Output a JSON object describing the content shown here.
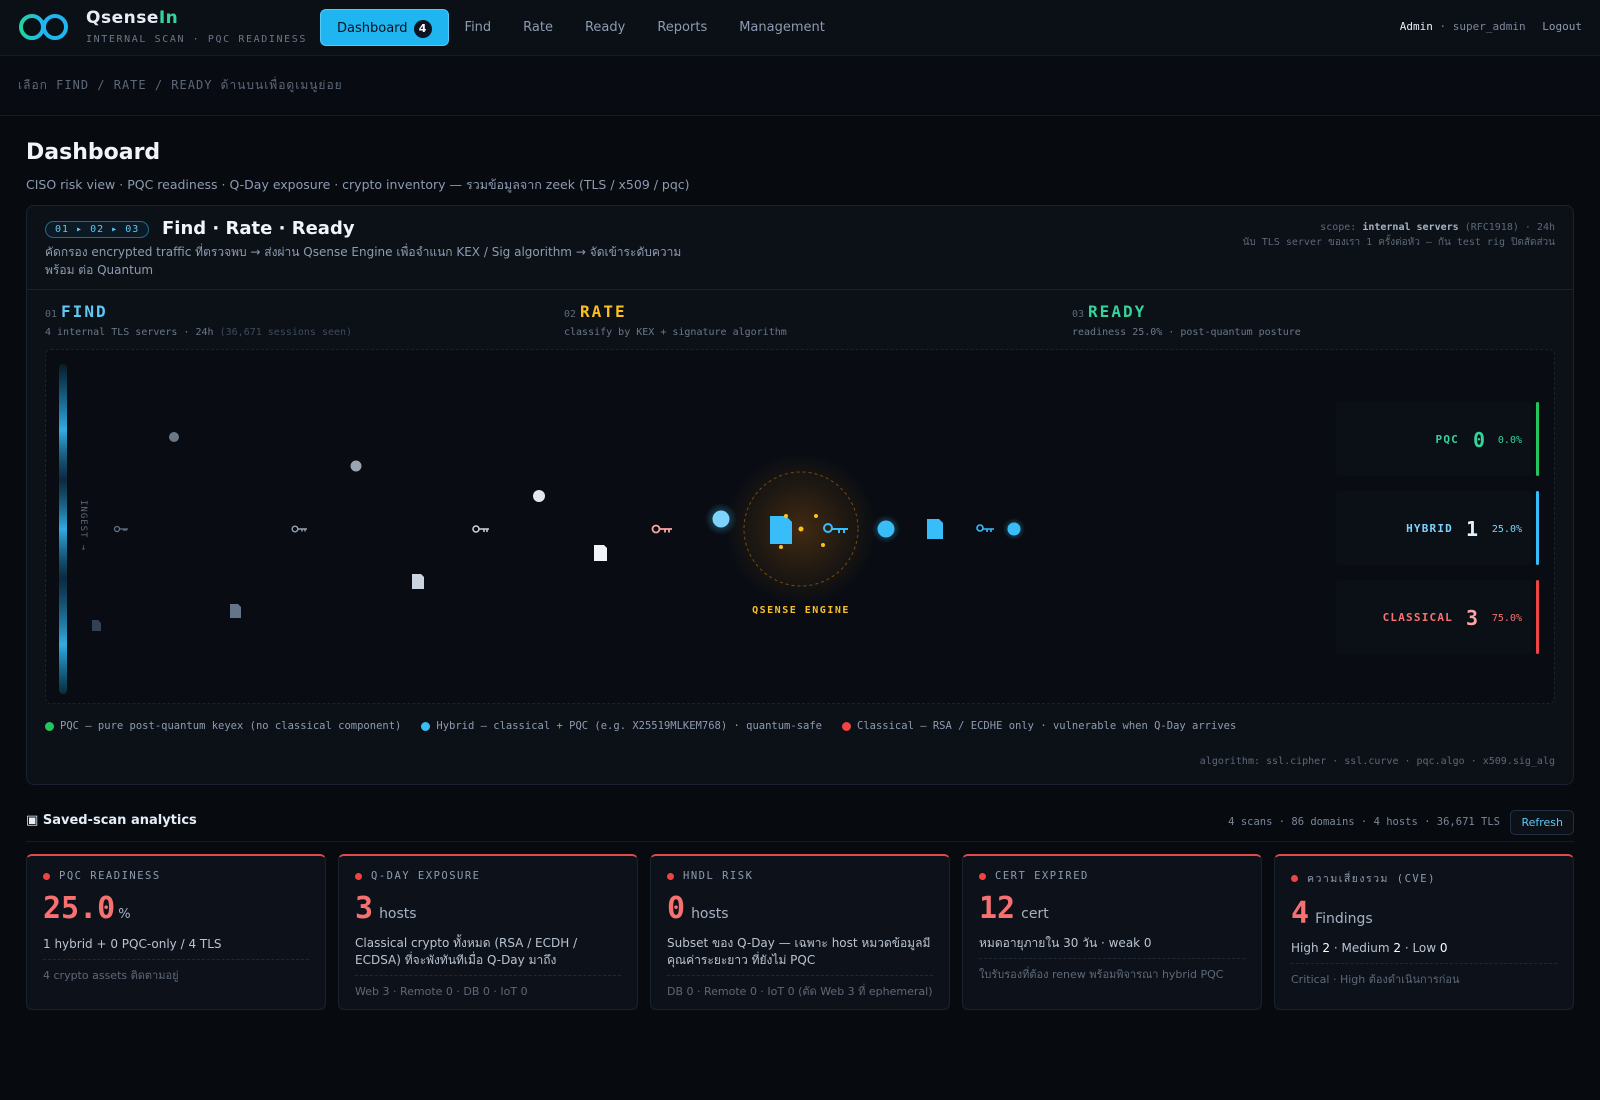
{
  "brand": {
    "name_prefix": "Qsense",
    "name_suffix": "In",
    "subtitle": "INTERNAL SCAN · PQC READINESS"
  },
  "nav": {
    "items": [
      {
        "label": "Dashboard",
        "badge": "4",
        "active": true
      },
      {
        "label": "Find"
      },
      {
        "label": "Rate"
      },
      {
        "label": "Ready"
      },
      {
        "label": "Reports"
      },
      {
        "label": "Management"
      }
    ]
  },
  "user": {
    "role": "Admin",
    "sep": "·",
    "name": "super_admin",
    "logout": "Logout"
  },
  "subnav": {
    "hint": "เลือก FIND / RATE / READY ด้านบนเพื่อดูเมนูย่อย"
  },
  "page": {
    "title": "Dashboard",
    "subtitle": "CISO risk view · PQC readiness · Q-Day exposure · crypto inventory — รวมข้อมูลจาก zeek (TLS / x509 / pqc)"
  },
  "pipeline": {
    "steps_pill": "01 ▸ 02 ▸ 03",
    "title": "Find · Rate · Ready",
    "description": "คัดกรอง encrypted traffic ที่ตรวจพบ → ส่งผ่าน Qsense Engine เพื่อจำแนก KEX / Sig algorithm → จัดเข้าระดับความพร้อม ต่อ Quantum",
    "scope_prefix": "scope:",
    "scope_bold": "internal servers",
    "scope_suffix": "(RFC1918) · 24h",
    "scope_note": "นับ TLS server ของเรา 1 ครั้งต่อหัว — กัน test rig ปิดสัดส่วน",
    "stages": [
      {
        "num": "01",
        "name": "FIND",
        "desc": "4 internal TLS servers · 24h",
        "desc_dim": "(36,671 sessions seen)"
      },
      {
        "num": "02",
        "name": "RATE",
        "desc": "classify by KEX + signature algorithm"
      },
      {
        "num": "03",
        "name": "READY",
        "desc": "readiness 25.0% · post-quantum posture"
      }
    ],
    "ingest_label": "INGEST →",
    "engine_label": "QSENSE ENGINE",
    "buckets": [
      {
        "label": "PQC",
        "count": "0",
        "pct": "0.0%",
        "color": "#34d399"
      },
      {
        "label": "HYBRID",
        "count": "1",
        "pct": "25.0%",
        "color": "#38bdf8"
      },
      {
        "label": "CLASSICAL",
        "count": "3",
        "pct": "75.0%",
        "color": "#ef4444"
      }
    ],
    "legend": [
      {
        "text": "PQC — pure post-quantum keyex (no classical component)",
        "color": "#22c55e"
      },
      {
        "text": "Hybrid — classical + PQC (e.g. X25519MLKEM768) · quantum-safe",
        "color": "#38bdf8"
      },
      {
        "text": "Classical — RSA / ECDHE only · vulnerable when Q-Day arrives",
        "color": "#ef4444"
      }
    ],
    "algorithm_note": "algorithm: ssl.cipher · ssl.curve · pqc.algo · x509.sig_alg"
  },
  "analytics": {
    "icon": "▣",
    "title": "Saved-scan analytics",
    "meta": "4 scans · 86 domains · 4 hosts · 36,671 TLS",
    "refresh": "Refresh",
    "cards": [
      {
        "label": "PQC READINESS",
        "value": "25.0",
        "unit": "%",
        "line1": "1 hybrid + 0 PQC-only / 4 TLS",
        "line2": "4 crypto assets ติดตามอยู่"
      },
      {
        "label": "Q-DAY EXPOSURE",
        "value": "3",
        "unit": "hosts",
        "line1": "Classical crypto ทั้งหมด (RSA / ECDH / ECDSA) ที่จะพังทันทีเมื่อ Q-Day มาถึง",
        "line2": "Web 3 · Remote 0 · DB 0 · IoT 0"
      },
      {
        "label": "HNDL RISK",
        "value": "0",
        "unit": "hosts",
        "line1": "Subset ของ Q-Day — เฉพาะ host หมวดข้อมูลมีคุณค่าระยะยาว ที่ยังไม่ PQC",
        "line2": "DB 0 · Remote 0 · IoT 0 (ตัด Web 3 ที่ ephemeral)"
      },
      {
        "label": "CERT EXPIRED",
        "value": "12",
        "unit": "cert",
        "line1": "หมดอายุภายใน 30 วัน · weak 0",
        "line2": "ใบรับรองที่ต้อง renew พร้อมพิจารณา hybrid PQC"
      },
      {
        "label": "ความเสี่ยงรวม (CVE)",
        "value": "4",
        "unit": "Findings",
        "line1_prefix": "High",
        "high": "2",
        "medium_label": "· Medium",
        "medium": "2",
        "low_label": "· Low",
        "low": "0",
        "line2": "Critical · High ต้องดำเนินการก่อน"
      }
    ]
  }
}
